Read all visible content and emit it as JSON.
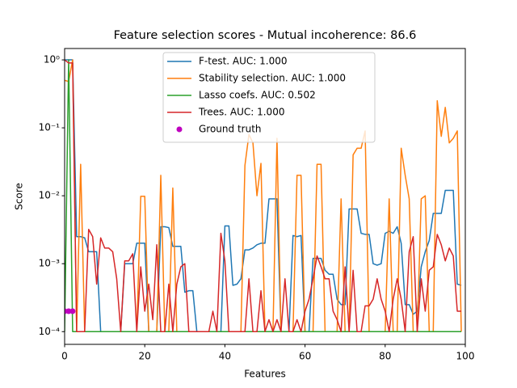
{
  "chart_data": {
    "type": "line",
    "title": "Feature selection scores - Mutual incoherence: 86.6",
    "x_label": "Features",
    "y_label": "Score",
    "log_y": true,
    "grid": false,
    "legend": "upper center",
    "xlim": [
      0,
      100
    ],
    "xticks": [
      0,
      20,
      40,
      60,
      80,
      100
    ],
    "ylim": [
      6.5e-05,
      1.47
    ],
    "yticks": [
      {
        "value": 0.0001,
        "label": "10⁻⁴"
      },
      {
        "value": 0.001,
        "label": "10⁻³"
      },
      {
        "value": 0.01,
        "label": "10⁻²"
      },
      {
        "value": 0.1,
        "label": "10⁻¹"
      },
      {
        "value": 1,
        "label": "10⁰"
      }
    ],
    "x": [
      0,
      1,
      2,
      3,
      4,
      5,
      6,
      7,
      8,
      9,
      10,
      11,
      12,
      13,
      14,
      15,
      16,
      17,
      18,
      19,
      20,
      21,
      22,
      23,
      24,
      25,
      26,
      27,
      28,
      29,
      30,
      31,
      32,
      33,
      34,
      35,
      36,
      37,
      38,
      39,
      40,
      41,
      42,
      43,
      44,
      45,
      46,
      47,
      48,
      49,
      50,
      51,
      52,
      53,
      54,
      55,
      56,
      57,
      58,
      59,
      60,
      61,
      62,
      63,
      64,
      65,
      66,
      67,
      68,
      69,
      70,
      71,
      72,
      73,
      74,
      75,
      76,
      77,
      78,
      79,
      80,
      81,
      82,
      83,
      84,
      85,
      86,
      87,
      88,
      89,
      90,
      91,
      92,
      93,
      94,
      95,
      96,
      97,
      98,
      99
    ],
    "series": [
      {
        "name": "F-test. AUC: 1.000",
        "color": "#1f77b4",
        "values": [
          1,
          1,
          1,
          0.0025,
          0.0025,
          0.0024,
          0.0015,
          0.0015,
          0.0015,
          0.0001,
          0.0001,
          0.0001,
          0.0001,
          0.0001,
          0.0001,
          0.001,
          0.001,
          0.001,
          0.002,
          0.002,
          0.002,
          0.0001,
          0.0001,
          0.0001,
          0.0035,
          0.0035,
          0.0034,
          0.0018,
          0.0018,
          0.0018,
          0.00038,
          0.0004,
          0.0004,
          0.0001,
          0.0001,
          0.0001,
          0.0001,
          0.0001,
          0.0001,
          0.0001,
          0.0036,
          0.0036,
          0.00048,
          0.0005,
          0.0006,
          0.0016,
          0.0016,
          0.0017,
          0.0019,
          0.002,
          0.002,
          0.009,
          0.009,
          0.009,
          0.0001,
          0.0001,
          0.0001,
          0.0026,
          0.0025,
          0.0026,
          0.0001,
          0.0001,
          0.0012,
          0.0012,
          0.0012,
          0.0008,
          0.0007,
          0.0007,
          0.0003,
          0.00025,
          0.00025,
          0.0064,
          0.0064,
          0.0064,
          0.0028,
          0.0027,
          0.0027,
          0.001,
          0.00095,
          0.001,
          0.0028,
          0.003,
          0.0028,
          0.0035,
          0.002,
          0.00025,
          0.00025,
          0.00018,
          0.0002,
          0.0009,
          0.0015,
          0.0022,
          0.0055,
          0.0055,
          0.0055,
          0.012,
          0.012,
          0.012,
          0.0005,
          0.00048
        ]
      },
      {
        "name": "Stability selection. AUC: 1.000",
        "color": "#ff7f0e",
        "values": [
          0.5,
          0.48,
          1,
          0.0001,
          0.029,
          0.0001,
          0.0001,
          0.0001,
          0.0001,
          0.0001,
          0.0001,
          0.0001,
          0.0001,
          0.0001,
          0.0001,
          0.0001,
          0.0001,
          0.0001,
          0.0001,
          0.0098,
          0.0098,
          0.0001,
          0.0001,
          0.0001,
          0.02,
          0.0001,
          0.0001,
          0.013,
          0.0001,
          0.0001,
          0.0001,
          0.0001,
          0.0001,
          0.0001,
          0.0001,
          0.0001,
          0.0001,
          0.0001,
          0.0001,
          0.0001,
          0.0001,
          0.0001,
          0.0001,
          0.0001,
          0.0001,
          0.028,
          0.08,
          0.06,
          0.01,
          0.03,
          0.0001,
          0.0001,
          0.0001,
          0.07,
          0.0001,
          0.0001,
          0.0001,
          0.0001,
          0.02,
          0.02,
          0.0001,
          0.0001,
          0.0001,
          0.029,
          0.029,
          0.0001,
          0.0001,
          0.0001,
          0.0001,
          0.009,
          0.0001,
          0.0001,
          0.04,
          0.05,
          0.05,
          0.09,
          0.0001,
          0.0001,
          0.0001,
          0.0001,
          0.0001,
          0.009,
          0.0001,
          0.0001,
          0.05,
          0.02,
          0.009,
          0.0001,
          0.0001,
          0.009,
          0.01,
          0.0001,
          0.0001,
          0.25,
          0.075,
          0.2,
          0.06,
          0.07,
          0.09,
          0.0001
        ]
      },
      {
        "name": "Lasso coefs. AUC: 0.502",
        "color": "#2ca02c",
        "values": [
          0.0001,
          1,
          0.0001,
          0.0001,
          0.0001,
          0.0001,
          0.0001,
          0.0001,
          0.0001,
          0.0001,
          0.0001,
          0.0001,
          0.0001,
          0.0001,
          0.0001,
          0.0001,
          0.0001,
          0.0001,
          0.0001,
          0.0001,
          0.0001,
          0.0001,
          0.0001,
          0.0001,
          0.0001,
          0.0001,
          0.0001,
          0.0001,
          0.0001,
          0.0001,
          0.0001,
          0.0001,
          0.0001,
          0.0001,
          0.0001,
          0.0001,
          0.0001,
          0.0001,
          0.0001,
          0.0001,
          0.0001,
          0.0001,
          0.0001,
          0.0001,
          0.0001,
          0.0001,
          0.0001,
          0.0001,
          0.0001,
          0.0001,
          0.0001,
          0.0001,
          0.0001,
          0.0001,
          0.0001,
          0.0001,
          0.0001,
          0.0001,
          0.0001,
          0.0001,
          0.0001,
          0.0001,
          0.0001,
          0.0001,
          0.0001,
          0.0001,
          0.0001,
          0.0001,
          0.0001,
          0.0001,
          0.0001,
          0.0001,
          0.0001,
          0.0001,
          0.0001,
          0.0001,
          0.0001,
          0.0001,
          0.0001,
          0.0001,
          0.0001,
          0.0001,
          0.0001,
          0.0001,
          0.0001,
          0.0001,
          0.0001,
          0.0001,
          0.0001,
          0.0001,
          0.0001,
          0.0001,
          0.0001,
          0.0001,
          0.0001,
          0.0001,
          0.0001,
          0.0001,
          0.0001,
          0.0001
        ]
      },
      {
        "name": "Trees. AUC: 1.000",
        "color": "#d62728",
        "values": [
          1,
          0.9,
          0.9,
          0.0001,
          0.0001,
          0.0001,
          0.0032,
          0.0025,
          0.0005,
          0.0024,
          0.0017,
          0.0017,
          0.0015,
          0.0006,
          0.0001,
          0.0011,
          0.0011,
          0.0014,
          0.0001,
          0.0009,
          0.0002,
          0.0005,
          0.00015,
          0.0019,
          0.0001,
          0.0001,
          0.0005,
          0.0001,
          0.0005,
          0.0009,
          0.001,
          0.0001,
          0.0001,
          0.0001,
          0.0001,
          0.0001,
          0.0001,
          0.0002,
          0.0001,
          0.0028,
          0.0011,
          0.0001,
          0.0001,
          0.0001,
          0.0001,
          0.0001,
          0.0006,
          0.0001,
          0.0001,
          0.0004,
          0.0001,
          0.00015,
          0.0001,
          0.00015,
          0.0001,
          0.0006,
          0.0001,
          0.0001,
          0.00015,
          0.0001,
          0.0002,
          0.0003,
          0.0006,
          0.0013,
          0.0009,
          0.0006,
          0.0006,
          0.0002,
          0.00015,
          0.0001,
          0.0009,
          0.0001,
          0.0008,
          0.0001,
          0.0001,
          0.00024,
          0.00024,
          0.0003,
          0.0006,
          0.0003,
          0.0002,
          0.0001,
          0.0003,
          0.0006,
          0.0003,
          0.0001,
          0.0015,
          0.0025,
          0.0001,
          0.0006,
          0.0002,
          0.0008,
          0.0009,
          0.0027,
          0.0019,
          0.0011,
          0.0017,
          0.0013,
          0.0002,
          0.0002
        ]
      },
      {
        "name": "Ground truth",
        "color": "#bf00bf",
        "marker": "circle",
        "x": [
          0,
          1,
          2
        ],
        "values": [
          0.0002,
          0.0002,
          0.0002
        ]
      }
    ]
  }
}
